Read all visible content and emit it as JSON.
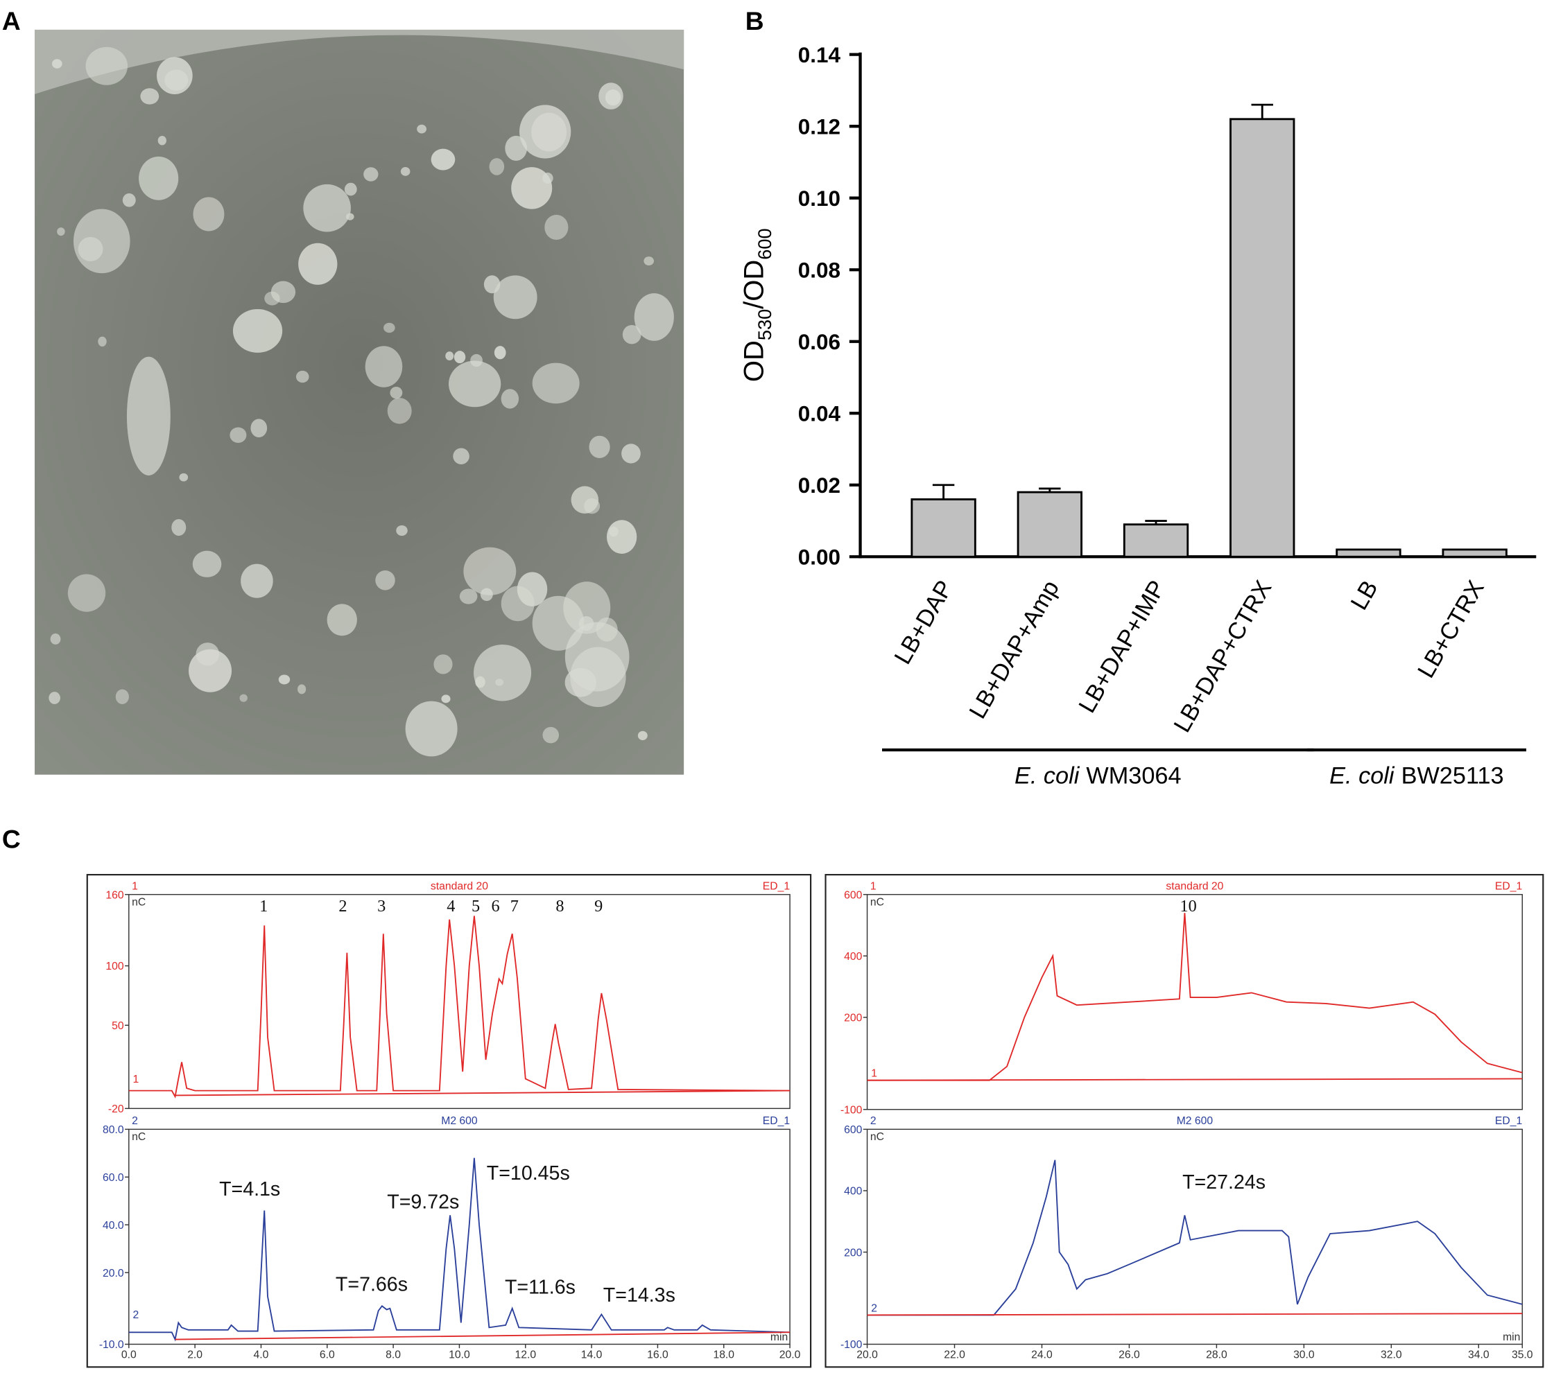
{
  "panels": {
    "a": "A",
    "b": "B",
    "c": "C"
  },
  "chart_data": [
    {
      "type": "bar",
      "y_label": [
        "OD",
        "530",
        "/OD",
        "600"
      ],
      "categories": [
        "LB+DAP",
        "LB+DAP+Amp",
        "LB+DAP+IMP",
        "LB+DAP+CTRX",
        "LB",
        "LB+CTRX"
      ],
      "values": [
        0.016,
        0.018,
        0.009,
        0.122,
        0.002,
        0.002
      ],
      "errors": [
        0.004,
        0.001,
        0.001,
        0.004,
        0,
        0
      ],
      "color": "#c0c0c0",
      "ylim": [
        0,
        0.14
      ],
      "yticks": [
        {
          "value": 0,
          "label": "0.00"
        },
        0.02,
        0.04,
        0.06,
        0.08,
        {
          "value": 0.1,
          "label": "0.10"
        },
        0.12,
        0.14
      ],
      "groups": [
        {
          "italic": "E. coli",
          "name": "WM3064"
        },
        {
          "italic": "E. coli",
          "name": "BW25113"
        }
      ]
    },
    {
      "type": "line",
      "channel": "1",
      "title": "standard 20",
      "detector": "ED_1",
      "y_unit": "nC",
      "xlim": [
        0,
        20
      ],
      "ylim": [
        -20,
        160
      ],
      "yticks": [
        -20,
        50,
        100,
        160
      ],
      "annotations": [
        "1",
        "2",
        "3",
        "4",
        "5",
        "6",
        "7",
        "8",
        "9"
      ],
      "series": [
        {
          "color": "#e02828",
          "x": [
            0,
            1.3,
            1.4,
            1.5,
            1.6,
            1.75,
            2.0,
            3.9,
            4.0,
            4.1,
            4.2,
            4.4,
            6.4,
            6.5,
            6.6,
            6.7,
            6.9,
            7.5,
            7.6,
            7.7,
            7.8,
            8.0,
            9.4,
            9.6,
            9.7,
            9.85,
            10.1,
            10.3,
            10.45,
            10.6,
            10.8,
            11.0,
            11.2,
            11.3,
            11.45,
            11.6,
            11.75,
            12.0,
            12.6,
            12.8,
            12.9,
            13.0,
            13.3,
            14.0,
            14.2,
            14.3,
            14.45,
            14.8,
            20
          ],
          "y": [
            -5,
            -5,
            -10,
            5,
            19,
            -3,
            -5,
            -5,
            60,
            134,
            40,
            -5,
            -5,
            50,
            111,
            40,
            -5,
            -5,
            60,
            127,
            60,
            -5,
            -5,
            100,
            139,
            100,
            11,
            100,
            142,
            100,
            21,
            60,
            89,
            85,
            110,
            127,
            90,
            5,
            -3,
            35,
            51,
            35,
            -4,
            -3,
            55,
            77,
            55,
            -4,
            -5
          ]
        },
        {
          "color": "#e02828",
          "x": [
            1.4,
            20
          ],
          "y": [
            -9,
            -5
          ]
        }
      ]
    },
    {
      "type": "line",
      "channel": "2",
      "title": "M2 600",
      "detector": "ED_1",
      "y_unit": "nC",
      "x_unit": "min",
      "xlim": [
        0,
        20
      ],
      "ylim": [
        -10,
        80
      ],
      "yticks": [
        {
          "value": -10,
          "label": "-10.0"
        },
        {
          "value": 20,
          "label": "20.0"
        },
        {
          "value": 40,
          "label": "40.0"
        },
        {
          "value": 60,
          "label": "60.0"
        },
        {
          "value": 80,
          "label": "80.0"
        }
      ],
      "xticks": [
        {
          "value": 0,
          "label": "0.0"
        },
        {
          "value": 2,
          "label": "2.0"
        },
        {
          "value": 4,
          "label": "4.0"
        },
        {
          "value": 6,
          "label": "6.0"
        },
        {
          "value": 8,
          "label": "8.0"
        },
        {
          "value": 10,
          "label": "10.0"
        },
        {
          "value": 12,
          "label": "12.0"
        },
        {
          "value": 14,
          "label": "14.0"
        },
        {
          "value": 16,
          "label": "16.0"
        },
        {
          "value": 18,
          "label": "18.0"
        },
        {
          "value": 20,
          "label": "20.0"
        }
      ],
      "annotations": [
        "T=4.1s",
        "T=7.66s",
        "T=9.72s",
        "T=10.45s",
        "T=11.6s",
        "T=14.3s"
      ],
      "series": [
        {
          "color": "#2a3f9a",
          "x": [
            0,
            1.3,
            1.4,
            1.5,
            1.6,
            1.8,
            3.0,
            3.1,
            3.3,
            3.9,
            4.0,
            4.1,
            4.2,
            4.4,
            7.4,
            7.55,
            7.66,
            7.8,
            7.9,
            8.1,
            9.4,
            9.6,
            9.72,
            9.85,
            10.05,
            10.3,
            10.45,
            10.6,
            10.9,
            11.4,
            11.6,
            11.8,
            14.0,
            14.3,
            14.6,
            16.2,
            16.3,
            16.5,
            17.2,
            17.35,
            17.6,
            20
          ],
          "y": [
            -5,
            -5,
            -8,
            -1,
            -3,
            -4,
            -4,
            -2,
            -4.5,
            -4.5,
            20,
            46,
            10,
            -4.5,
            -4,
            4,
            6,
            4.5,
            5,
            -4,
            -4,
            30,
            44,
            30,
            -1,
            40,
            68,
            40,
            -3,
            -2,
            5,
            -3,
            -4,
            2.5,
            -4,
            -4,
            -3,
            -4,
            -4,
            -2,
            -4,
            -5
          ]
        },
        {
          "color": "#e02828",
          "x": [
            1.4,
            20
          ],
          "y": [
            -8,
            -5
          ]
        }
      ]
    },
    {
      "type": "line",
      "channel": "1",
      "title": "standard 20",
      "detector": "ED_1",
      "y_unit": "nC",
      "xlim": [
        20,
        35
      ],
      "ylim": [
        -100,
        600
      ],
      "yticks": [
        -100,
        200,
        400,
        600
      ],
      "annotations": [
        "10"
      ],
      "series": [
        {
          "color": "#e02828",
          "x": [
            20,
            22.8,
            23.2,
            23.6,
            24.0,
            24.25,
            24.35,
            24.8,
            26.0,
            27.15,
            27.27,
            27.4,
            28.0,
            28.8,
            29.6,
            30.5,
            31.5,
            32.5,
            33.0,
            33.6,
            34.2,
            35
          ],
          "y": [
            -5,
            -5,
            40,
            200,
            330,
            400,
            270,
            240,
            250,
            260,
            540,
            265,
            265,
            280,
            250,
            245,
            230,
            250,
            210,
            120,
            50,
            20
          ]
        },
        {
          "color": "#e02828",
          "x": [
            20,
            35
          ],
          "y": [
            -5,
            0
          ]
        }
      ]
    },
    {
      "type": "line",
      "channel": "2",
      "title": "M2 600",
      "detector": "ED_1",
      "y_unit": "nC",
      "x_unit": "min",
      "xlim": [
        20,
        35
      ],
      "ylim": [
        -100,
        600
      ],
      "yticks": [
        -100,
        200,
        400,
        600
      ],
      "xticks": [
        {
          "value": 20,
          "label": "20.0"
        },
        {
          "value": 22,
          "label": "22.0"
        },
        {
          "value": 24,
          "label": "24.0"
        },
        {
          "value": 26,
          "label": "26.0"
        },
        {
          "value": 28,
          "label": "28.0"
        },
        {
          "value": 30,
          "label": "30.0"
        },
        {
          "value": 32,
          "label": "32.0"
        },
        {
          "value": 34,
          "label": "34.0"
        },
        {
          "value": 35,
          "label": "35.0"
        }
      ],
      "annotations": [
        "T=27.24s"
      ],
      "series": [
        {
          "color": "#2a3f9a",
          "x": [
            20,
            22.9,
            23.4,
            23.8,
            24.1,
            24.3,
            24.4,
            24.6,
            24.8,
            25.0,
            25.5,
            26.0,
            27.15,
            27.27,
            27.4,
            28.5,
            29.5,
            29.65,
            29.85,
            30.1,
            30.6,
            31.5,
            32.6,
            33.0,
            33.6,
            34.2,
            35
          ],
          "y": [
            -5,
            -5,
            80,
            230,
            380,
            500,
            200,
            160,
            80,
            110,
            130,
            160,
            230,
            320,
            240,
            270,
            270,
            250,
            30,
            120,
            260,
            270,
            300,
            260,
            150,
            60,
            30
          ]
        },
        {
          "color": "#e02828",
          "x": [
            20,
            35
          ],
          "y": [
            -5,
            0
          ]
        }
      ]
    }
  ]
}
